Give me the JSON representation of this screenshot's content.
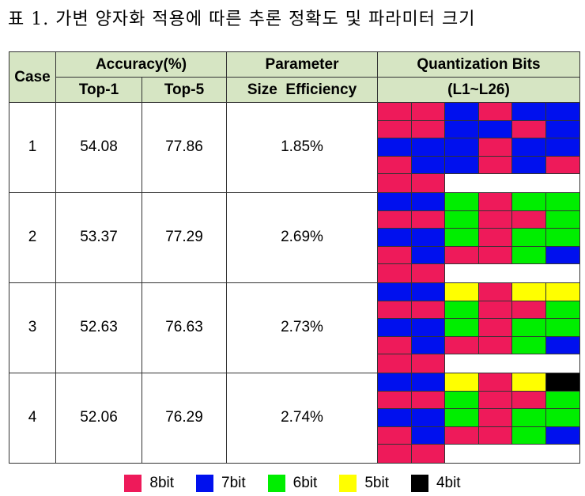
{
  "caption": "표 1. 가변 양자화 적용에 따른 추론 정확도 및 파라미터 크기",
  "headers": {
    "case": "Case",
    "accuracy": "Accuracy(%)",
    "top1": "Top-1",
    "top5": "Top-5",
    "param_line1": "Parameter",
    "param_line2": "Size  Efficiency",
    "quant_line1": "Quantization Bits",
    "quant_line2": "(L1~L26)"
  },
  "rows": [
    {
      "case": "1",
      "top1": "54.08",
      "top5": "77.86",
      "efficiency": "1.85%",
      "bits": [
        8,
        8,
        7,
        8,
        7,
        7,
        8,
        8,
        7,
        7,
        8,
        7,
        7,
        7,
        7,
        8,
        7,
        7,
        8,
        7,
        7,
        8,
        7,
        8,
        8,
        8
      ]
    },
    {
      "case": "2",
      "top1": "53.37",
      "top5": "77.29",
      "efficiency": "2.69%",
      "bits": [
        7,
        7,
        6,
        8,
        6,
        6,
        8,
        8,
        6,
        8,
        8,
        6,
        7,
        7,
        6,
        8,
        6,
        6,
        8,
        7,
        8,
        8,
        6,
        7,
        8,
        8
      ]
    },
    {
      "case": "3",
      "top1": "52.63",
      "top5": "76.63",
      "efficiency": "2.73%",
      "bits": [
        7,
        7,
        5,
        8,
        5,
        5,
        8,
        8,
        6,
        8,
        8,
        6,
        7,
        7,
        6,
        8,
        6,
        6,
        8,
        7,
        8,
        8,
        6,
        7,
        8,
        8
      ]
    },
    {
      "case": "4",
      "top1": "52.06",
      "top5": "76.29",
      "efficiency": "2.74%",
      "bits": [
        7,
        7,
        5,
        8,
        5,
        4,
        8,
        8,
        6,
        8,
        8,
        6,
        7,
        7,
        6,
        8,
        6,
        6,
        8,
        7,
        8,
        8,
        6,
        7,
        8,
        8
      ]
    }
  ],
  "bit_colors": {
    "8": "#ee1a5a",
    "7": "#0010ee",
    "6": "#00ee00",
    "5": "#ffff00",
    "4": "#000000"
  },
  "legend": [
    {
      "bits": "8",
      "label": "8bit",
      "color": "#ee1a5a"
    },
    {
      "bits": "7",
      "label": "7bit",
      "color": "#0010ee"
    },
    {
      "bits": "6",
      "label": "6bit",
      "color": "#00ee00"
    },
    {
      "bits": "5",
      "label": "5bit",
      "color": "#ffff00"
    },
    {
      "bits": "4",
      "label": "4bit",
      "color": "#000000"
    }
  ]
}
